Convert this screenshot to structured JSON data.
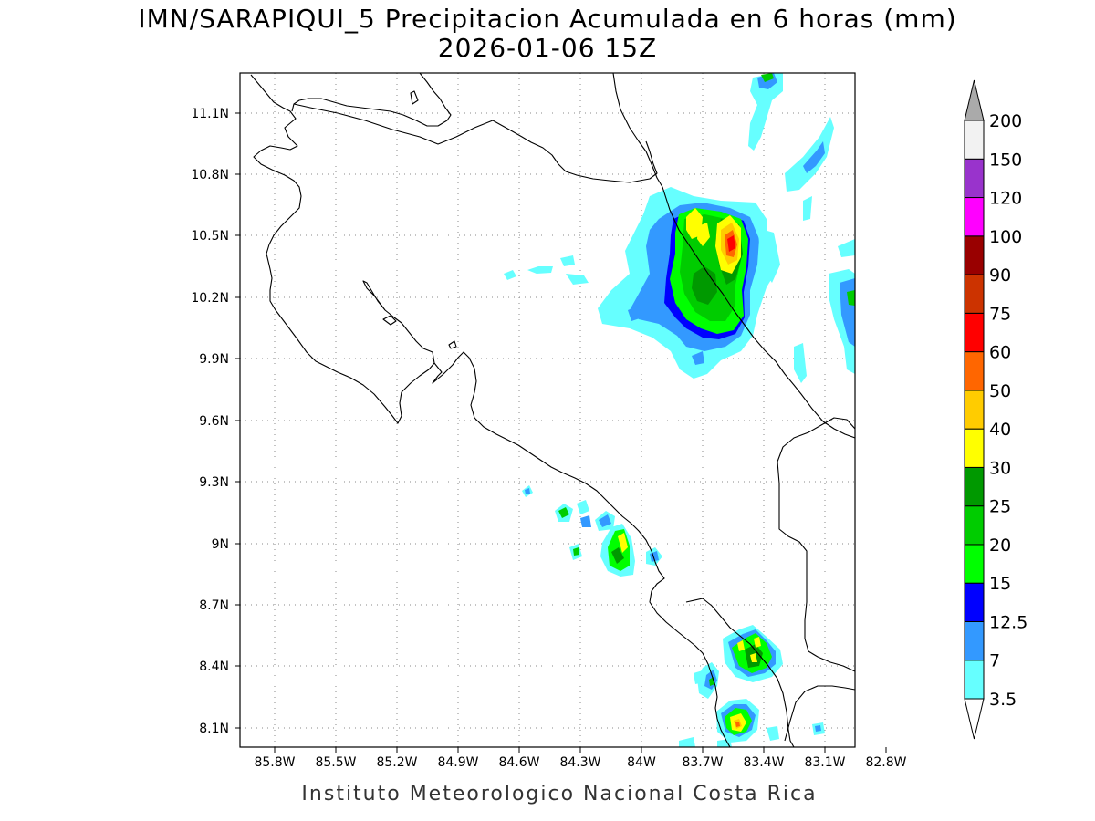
{
  "header": {
    "title_line1": "IMN/SARAPIQUI_5 Precipitacion Acumulada en 6 horas (mm)",
    "title_line2": "2026-01-06 15Z"
  },
  "map": {
    "lat_ticks": [
      "11.1N",
      "10.8N",
      "10.5N",
      "10.2N",
      "9.9N",
      "9.6N",
      "9.3N",
      "9N",
      "8.7N",
      "8.4N",
      "8.1N"
    ],
    "lon_ticks": [
      "85.8W",
      "85.5W",
      "85.2W",
      "84.9W",
      "84.6W",
      "84.3W",
      "84W",
      "83.7W",
      "83.4W",
      "83.1W",
      "82.8W"
    ],
    "lat_range": [
      8.0,
      11.3
    ],
    "lon_range": [
      -85.97,
      -82.96
    ]
  },
  "legend": {
    "levels": [
      "3.5",
      "7",
      "12.5",
      "15",
      "20",
      "25",
      "30",
      "40",
      "50",
      "60",
      "75",
      "90",
      "100",
      "120",
      "150",
      "200"
    ],
    "colors": [
      "#66ffff",
      "#3399ff",
      "#0000ff",
      "#00ff00",
      "#00cc00",
      "#009900",
      "#ffff00",
      "#ffcc00",
      "#ff6600",
      "#ff0000",
      "#cc3300",
      "#990000",
      "#ff00ff",
      "#9933cc",
      "#f2f2f2",
      "#aaaaaa"
    ],
    "under_color": "#ffffff",
    "over_color": "#aaaaaa",
    "units": "mm"
  },
  "footer": {
    "credit": "Instituto Meteorologico Nacional Costa Rica"
  }
}
